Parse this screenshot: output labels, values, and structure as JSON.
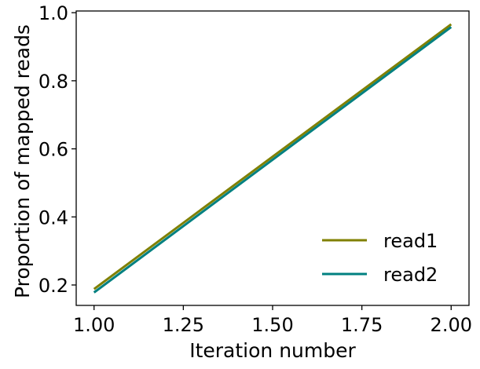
{
  "chart_data": {
    "type": "line",
    "title": "",
    "xlabel": "Iteration number",
    "ylabel": "Proportion of mapped reads",
    "xlim": [
      0.95,
      2.05
    ],
    "ylim": [
      0.14,
      1.005
    ],
    "xticks": [
      1.0,
      1.25,
      1.5,
      1.75,
      2.0
    ],
    "xtick_labels": [
      "1.00",
      "1.25",
      "1.50",
      "1.75",
      "2.00"
    ],
    "yticks": [
      0.2,
      0.4,
      0.6,
      0.8,
      1.0
    ],
    "ytick_labels": [
      "0.2",
      "0.4",
      "0.6",
      "0.8",
      "1.0"
    ],
    "grid": false,
    "legend_position": "lower-right",
    "series": [
      {
        "name": "read1",
        "color": "#808000",
        "x": [
          1.0,
          2.0
        ],
        "y": [
          0.188,
          0.966
        ]
      },
      {
        "name": "read2",
        "color": "#008080",
        "x": [
          1.0,
          2.0
        ],
        "y": [
          0.178,
          0.958
        ]
      }
    ]
  }
}
